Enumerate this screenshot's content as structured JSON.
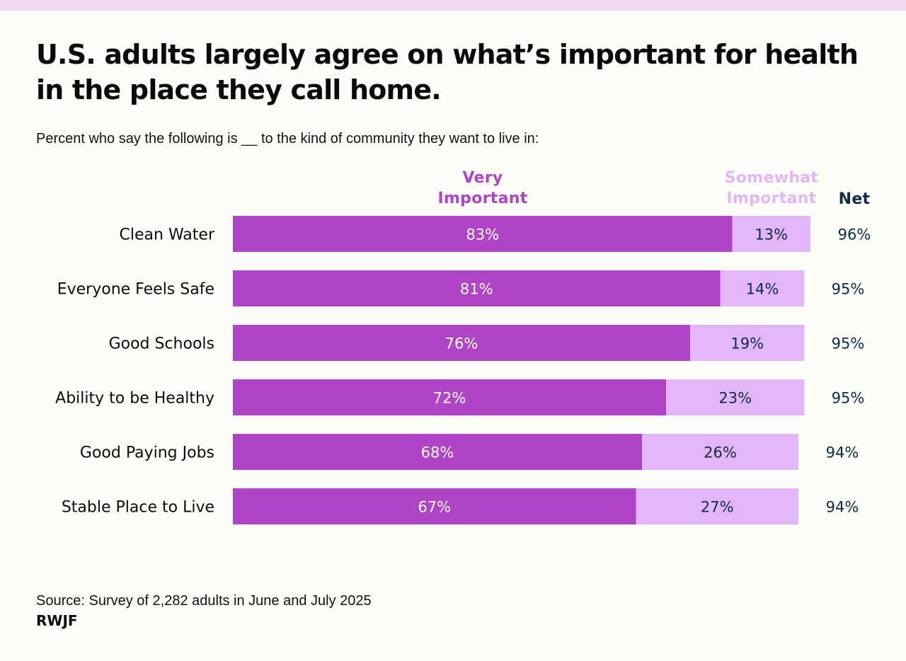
{
  "header": {
    "title": "U.S. adults largely agree on what’s important for health in the place they call home.",
    "subtitle": "Percent who say the following is __ to the kind of community they want to live in:"
  },
  "legend": {
    "very": "Very Important",
    "somewhat": "Somewhat Important",
    "net": "Net"
  },
  "colors": {
    "very": "#af44c6",
    "somewhat": "#e2b6f8",
    "net_text": "#0f2b45",
    "very_label_text": "#ffffff",
    "somewhat_label_text": "#0f2b45",
    "top_band": "#f0d9f3"
  },
  "chart_data": {
    "type": "bar",
    "orientation": "horizontal",
    "stacked": true,
    "title": "U.S. adults largely agree on what’s important for health in the place they call home.",
    "subtitle": "Percent who say the following is __ to the kind of community they want to live in:",
    "categories": [
      "Clean Water",
      "Everyone Feels Safe",
      "Good Schools",
      "Ability to be Healthy",
      "Good Paying Jobs",
      "Stable Place to Live"
    ],
    "series": [
      {
        "name": "Very Important",
        "values": [
          83,
          81,
          76,
          72,
          68,
          67
        ],
        "labels": [
          "83%",
          "81%",
          "76%",
          "72%",
          "68%",
          "67%"
        ]
      },
      {
        "name": "Somewhat Important",
        "values": [
          13,
          14,
          19,
          23,
          26,
          27
        ],
        "labels": [
          "13%",
          "14%",
          "19%",
          "23%",
          "26%",
          "27%"
        ]
      }
    ],
    "net": {
      "name": "Net",
      "values": [
        96,
        95,
        95,
        95,
        94,
        94
      ],
      "labels": [
        "96%",
        "95%",
        "95%",
        "95%",
        "94%",
        "94%"
      ]
    },
    "xlabel": "",
    "ylabel": "",
    "xlim": [
      0,
      100
    ],
    "grid": false,
    "legend_position": "top"
  },
  "footer": {
    "source": "Source: Survey of 2,282 adults in June and July 2025",
    "org": "RWJF"
  }
}
